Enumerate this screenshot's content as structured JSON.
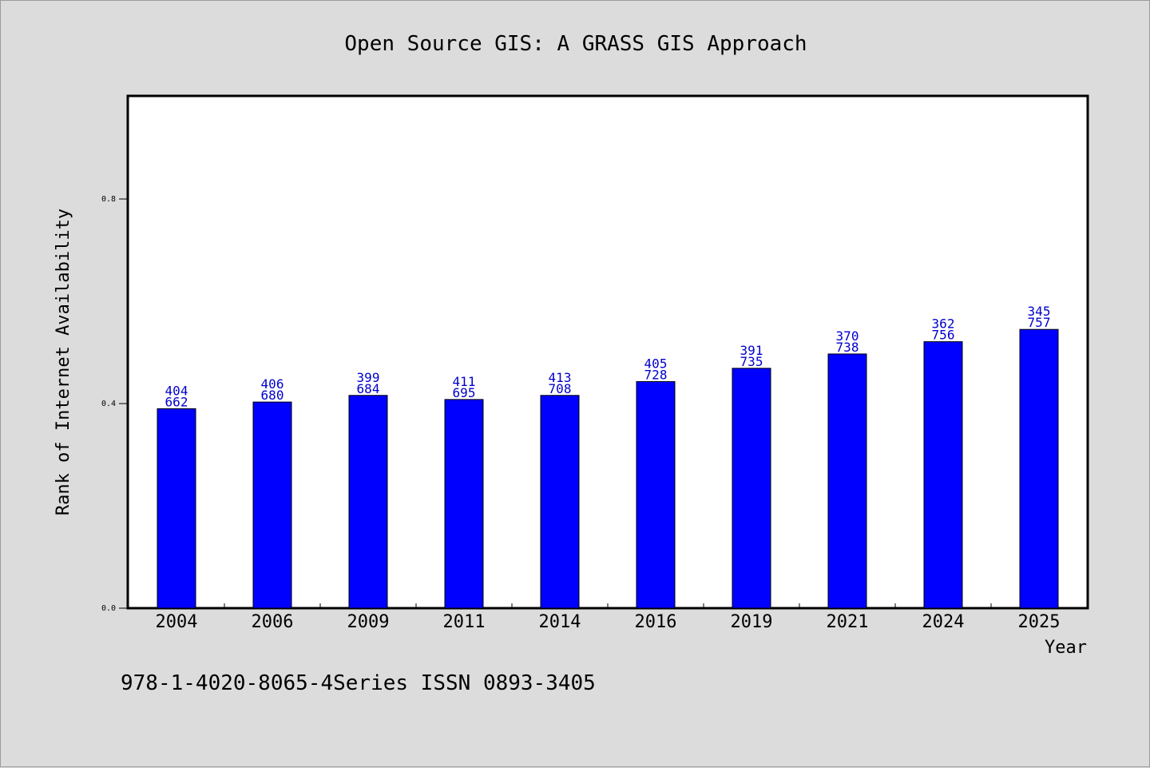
{
  "chart_data": {
    "type": "bar",
    "title": "Open Source GIS: A GRASS GIS Approach",
    "xlabel": "Year",
    "ylabel": "Rank of Internet Availability",
    "categories": [
      "2004",
      "2006",
      "2009",
      "2011",
      "2014",
      "2016",
      "2019",
      "2021",
      "2024",
      "2025"
    ],
    "values": [
      0.39,
      0.403,
      0.416,
      0.408,
      0.416,
      0.443,
      0.469,
      0.497,
      0.521,
      0.545
    ],
    "data_labels": [
      [
        "404",
        "662"
      ],
      [
        "406",
        "680"
      ],
      [
        "399",
        "684"
      ],
      [
        "411",
        "695"
      ],
      [
        "413",
        "708"
      ],
      [
        "405",
        "728"
      ],
      [
        "391",
        "735"
      ],
      [
        "370",
        "738"
      ],
      [
        "362",
        "756"
      ],
      [
        "345",
        "757"
      ]
    ],
    "ylim": [
      0,
      1.0
    ],
    "yticks": [
      0.0,
      0.4,
      0.8
    ],
    "ytick_labels": [
      "0.0",
      "0.4",
      "0.8"
    ],
    "grid": false,
    "bar_color": "#0000ff",
    "label_color": "#0000cc"
  },
  "footer": {
    "text": "978-1-4020-8065-4Series ISSN 0893-3405"
  }
}
